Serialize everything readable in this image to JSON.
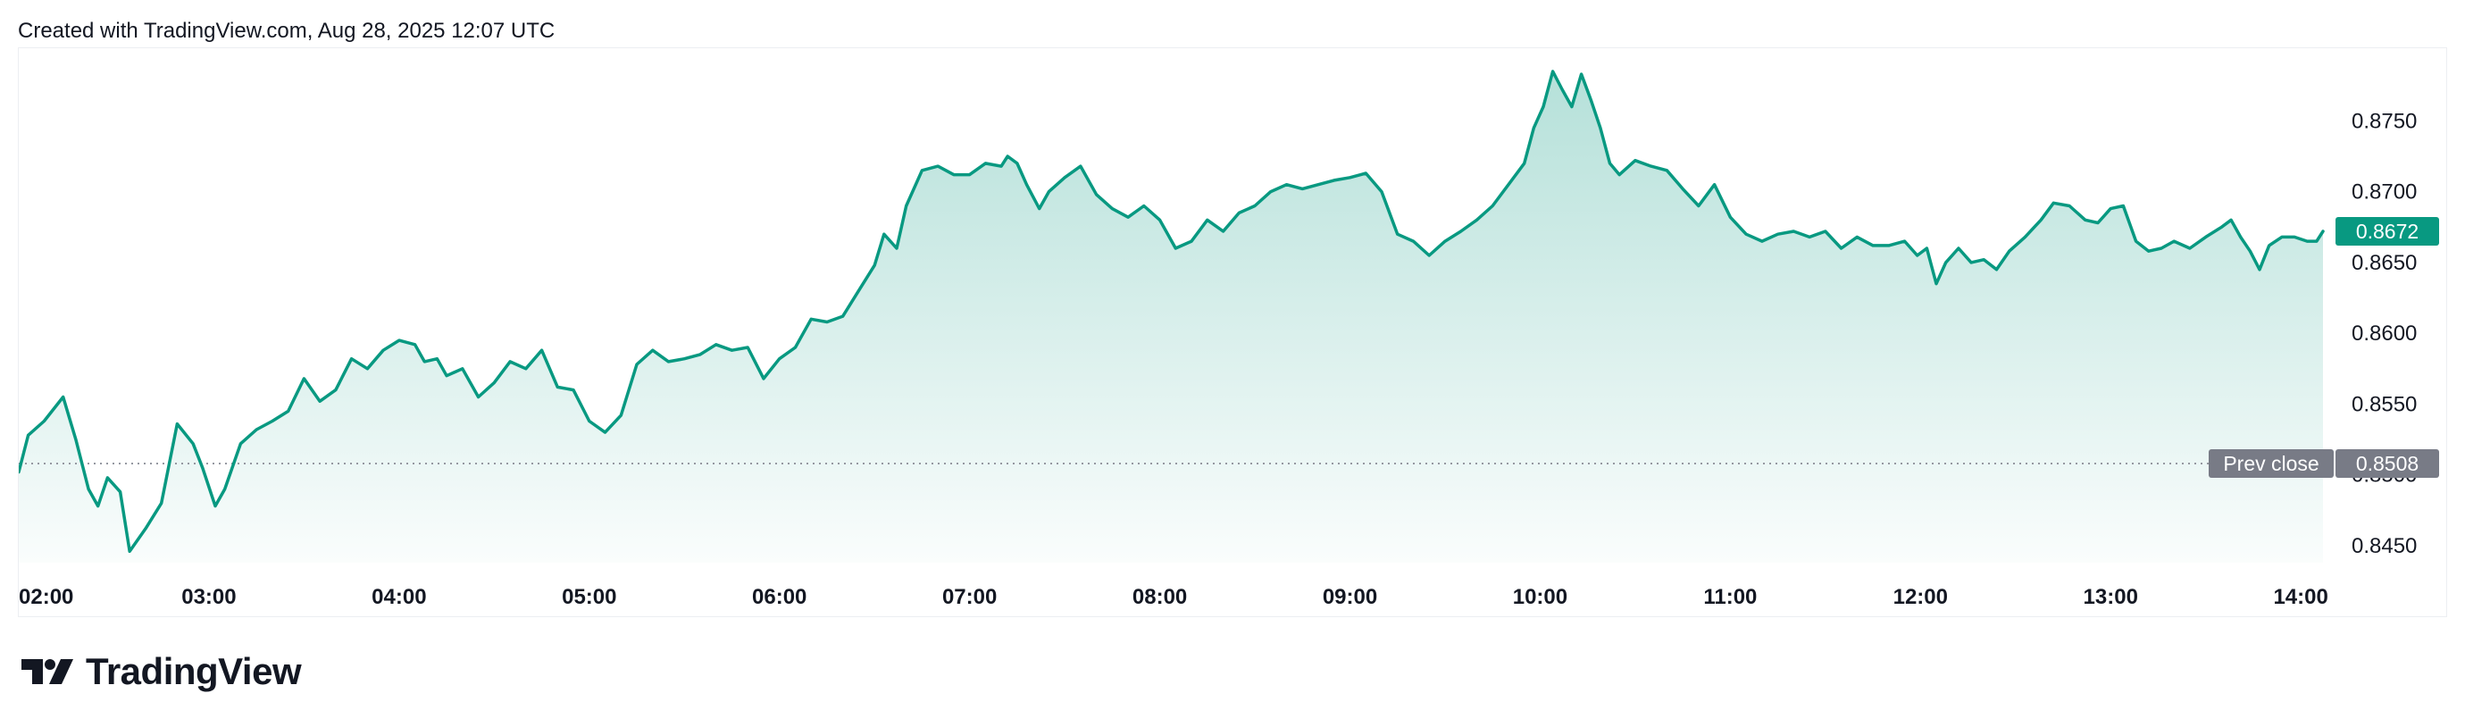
{
  "header": {
    "created_text": "Created with TradingView.com, Aug 28, 2025 12:07 UTC"
  },
  "brand": {
    "name": "TradingView",
    "logo_icon": "tradingview-logo-icon"
  },
  "colors": {
    "line": "#089981",
    "fill": "#089981",
    "price_badge": "#089981",
    "prev_close_badge": "#787b86",
    "text": "#131722"
  },
  "last_price": {
    "label": "0.8672",
    "value": 0.8672
  },
  "prev_close": {
    "label": "Prev close",
    "value_label": "0.8508",
    "value": 0.8508
  },
  "chart_data": {
    "type": "area",
    "title": "",
    "xlabel": "",
    "ylabel": "",
    "x_ticks": [
      "02:00",
      "03:00",
      "04:00",
      "05:00",
      "06:00",
      "07:00",
      "08:00",
      "09:00",
      "10:00",
      "11:00",
      "12:00",
      "13:00",
      "14:00"
    ],
    "y_ticks": [
      "0.8750",
      "0.8700",
      "0.8650",
      "0.8600",
      "0.8550",
      "0.8500",
      "0.8450"
    ],
    "ylim": [
      0.8438,
      0.8795
    ],
    "xlim": [
      "02:00",
      "14:07"
    ],
    "grid": false,
    "series": [
      {
        "values": [
          [
            "02:00",
            0.8502
          ],
          [
            "02:03",
            0.8528
          ],
          [
            "02:08",
            0.8538
          ],
          [
            "02:14",
            0.8555
          ],
          [
            "02:18",
            0.8525
          ],
          [
            "02:22",
            0.849
          ],
          [
            "02:25",
            0.8478
          ],
          [
            "02:28",
            0.8498
          ],
          [
            "02:32",
            0.8488
          ],
          [
            "02:35",
            0.8446
          ],
          [
            "02:40",
            0.8462
          ],
          [
            "02:45",
            0.848
          ],
          [
            "02:50",
            0.8536
          ],
          [
            "02:55",
            0.8522
          ],
          [
            "02:58",
            0.8505
          ],
          [
            "03:02",
            0.8478
          ],
          [
            "03:05",
            0.849
          ],
          [
            "03:10",
            0.8522
          ],
          [
            "03:15",
            0.8532
          ],
          [
            "03:20",
            0.8538
          ],
          [
            "03:25",
            0.8545
          ],
          [
            "03:30",
            0.8568
          ],
          [
            "03:35",
            0.8552
          ],
          [
            "03:40",
            0.856
          ],
          [
            "03:45",
            0.8582
          ],
          [
            "03:50",
            0.8575
          ],
          [
            "03:55",
            0.8588
          ],
          [
            "04:00",
            0.8595
          ],
          [
            "04:05",
            0.8592
          ],
          [
            "04:08",
            0.858
          ],
          [
            "04:12",
            0.8582
          ],
          [
            "04:15",
            0.857
          ],
          [
            "04:20",
            0.8575
          ],
          [
            "04:25",
            0.8555
          ],
          [
            "04:30",
            0.8565
          ],
          [
            "04:35",
            0.858
          ],
          [
            "04:40",
            0.8575
          ],
          [
            "04:45",
            0.8588
          ],
          [
            "04:50",
            0.8562
          ],
          [
            "04:55",
            0.856
          ],
          [
            "05:00",
            0.8538
          ],
          [
            "05:05",
            0.853
          ],
          [
            "05:10",
            0.8542
          ],
          [
            "05:15",
            0.8578
          ],
          [
            "05:20",
            0.8588
          ],
          [
            "05:25",
            0.858
          ],
          [
            "05:30",
            0.8582
          ],
          [
            "05:35",
            0.8585
          ],
          [
            "05:40",
            0.8592
          ],
          [
            "05:45",
            0.8588
          ],
          [
            "05:50",
            0.859
          ],
          [
            "05:55",
            0.8568
          ],
          [
            "06:00",
            0.8582
          ],
          [
            "06:05",
            0.859
          ],
          [
            "06:10",
            0.861
          ],
          [
            "06:15",
            0.8608
          ],
          [
            "06:20",
            0.8612
          ],
          [
            "06:25",
            0.863
          ],
          [
            "06:30",
            0.8648
          ],
          [
            "06:33",
            0.867
          ],
          [
            "06:37",
            0.866
          ],
          [
            "06:40",
            0.869
          ],
          [
            "06:45",
            0.8715
          ],
          [
            "06:50",
            0.8718
          ],
          [
            "06:55",
            0.8712
          ],
          [
            "07:00",
            0.8712
          ],
          [
            "07:05",
            0.872
          ],
          [
            "07:10",
            0.8718
          ],
          [
            "07:12",
            0.8725
          ],
          [
            "07:15",
            0.872
          ],
          [
            "07:18",
            0.8705
          ],
          [
            "07:22",
            0.8688
          ],
          [
            "07:25",
            0.87
          ],
          [
            "07:30",
            0.871
          ],
          [
            "07:35",
            0.8718
          ],
          [
            "07:40",
            0.8698
          ],
          [
            "07:45",
            0.8688
          ],
          [
            "07:50",
            0.8682
          ],
          [
            "07:55",
            0.869
          ],
          [
            "08:00",
            0.868
          ],
          [
            "08:05",
            0.866
          ],
          [
            "08:10",
            0.8665
          ],
          [
            "08:15",
            0.868
          ],
          [
            "08:20",
            0.8672
          ],
          [
            "08:25",
            0.8685
          ],
          [
            "08:30",
            0.869
          ],
          [
            "08:35",
            0.87
          ],
          [
            "08:40",
            0.8705
          ],
          [
            "08:45",
            0.8702
          ],
          [
            "08:50",
            0.8705
          ],
          [
            "08:55",
            0.8708
          ],
          [
            "09:00",
            0.871
          ],
          [
            "09:05",
            0.8713
          ],
          [
            "09:10",
            0.87
          ],
          [
            "09:15",
            0.867
          ],
          [
            "09:20",
            0.8665
          ],
          [
            "09:25",
            0.8655
          ],
          [
            "09:30",
            0.8665
          ],
          [
            "09:35",
            0.8672
          ],
          [
            "09:40",
            0.868
          ],
          [
            "09:45",
            0.869
          ],
          [
            "09:50",
            0.8705
          ],
          [
            "09:55",
            0.872
          ],
          [
            "09:58",
            0.8745
          ],
          [
            "10:01",
            0.876
          ],
          [
            "10:04",
            0.8785
          ],
          [
            "10:07",
            0.8772
          ],
          [
            "10:10",
            0.876
          ],
          [
            "10:13",
            0.8783
          ],
          [
            "10:16",
            0.8765
          ],
          [
            "10:19",
            0.8745
          ],
          [
            "10:22",
            0.872
          ],
          [
            "10:25",
            0.8712
          ],
          [
            "10:30",
            0.8722
          ],
          [
            "10:35",
            0.8718
          ],
          [
            "10:40",
            0.8715
          ],
          [
            "10:45",
            0.8702
          ],
          [
            "10:50",
            0.869
          ],
          [
            "10:55",
            0.8705
          ],
          [
            "11:00",
            0.8682
          ],
          [
            "11:05",
            0.867
          ],
          [
            "11:10",
            0.8665
          ],
          [
            "11:15",
            0.867
          ],
          [
            "11:20",
            0.8672
          ],
          [
            "11:25",
            0.8668
          ],
          [
            "11:30",
            0.8672
          ],
          [
            "11:35",
            0.866
          ],
          [
            "11:40",
            0.8668
          ],
          [
            "11:45",
            0.8662
          ],
          [
            "11:50",
            0.8662
          ],
          [
            "11:55",
            0.8665
          ],
          [
            "11:59",
            0.8655
          ],
          [
            "12:02",
            0.866
          ],
          [
            "12:05",
            0.8635
          ],
          [
            "12:08",
            0.865
          ],
          [
            "12:12",
            0.866
          ],
          [
            "12:16",
            0.865
          ],
          [
            "12:20",
            0.8652
          ],
          [
            "12:24",
            0.8645
          ],
          [
            "12:28",
            0.8658
          ],
          [
            "12:33",
            0.8668
          ],
          [
            "12:38",
            0.868
          ],
          [
            "12:42",
            0.8692
          ],
          [
            "12:47",
            0.869
          ],
          [
            "12:52",
            0.868
          ],
          [
            "12:56",
            0.8678
          ],
          [
            "13:00",
            0.8688
          ],
          [
            "13:04",
            0.869
          ],
          [
            "13:08",
            0.8665
          ],
          [
            "13:12",
            0.8658
          ],
          [
            "13:16",
            0.866
          ],
          [
            "13:20",
            0.8665
          ],
          [
            "13:25",
            0.866
          ],
          [
            "13:30",
            0.8668
          ],
          [
            "13:35",
            0.8675
          ],
          [
            "13:38",
            0.868
          ],
          [
            "13:41",
            0.8668
          ],
          [
            "13:44",
            0.8658
          ],
          [
            "13:47",
            0.8645
          ],
          [
            "13:50",
            0.8662
          ],
          [
            "13:54",
            0.8668
          ],
          [
            "13:58",
            0.8668
          ],
          [
            "14:02",
            0.8665
          ],
          [
            "14:05",
            0.8665
          ],
          [
            "14:07",
            0.8672
          ]
        ]
      }
    ]
  }
}
